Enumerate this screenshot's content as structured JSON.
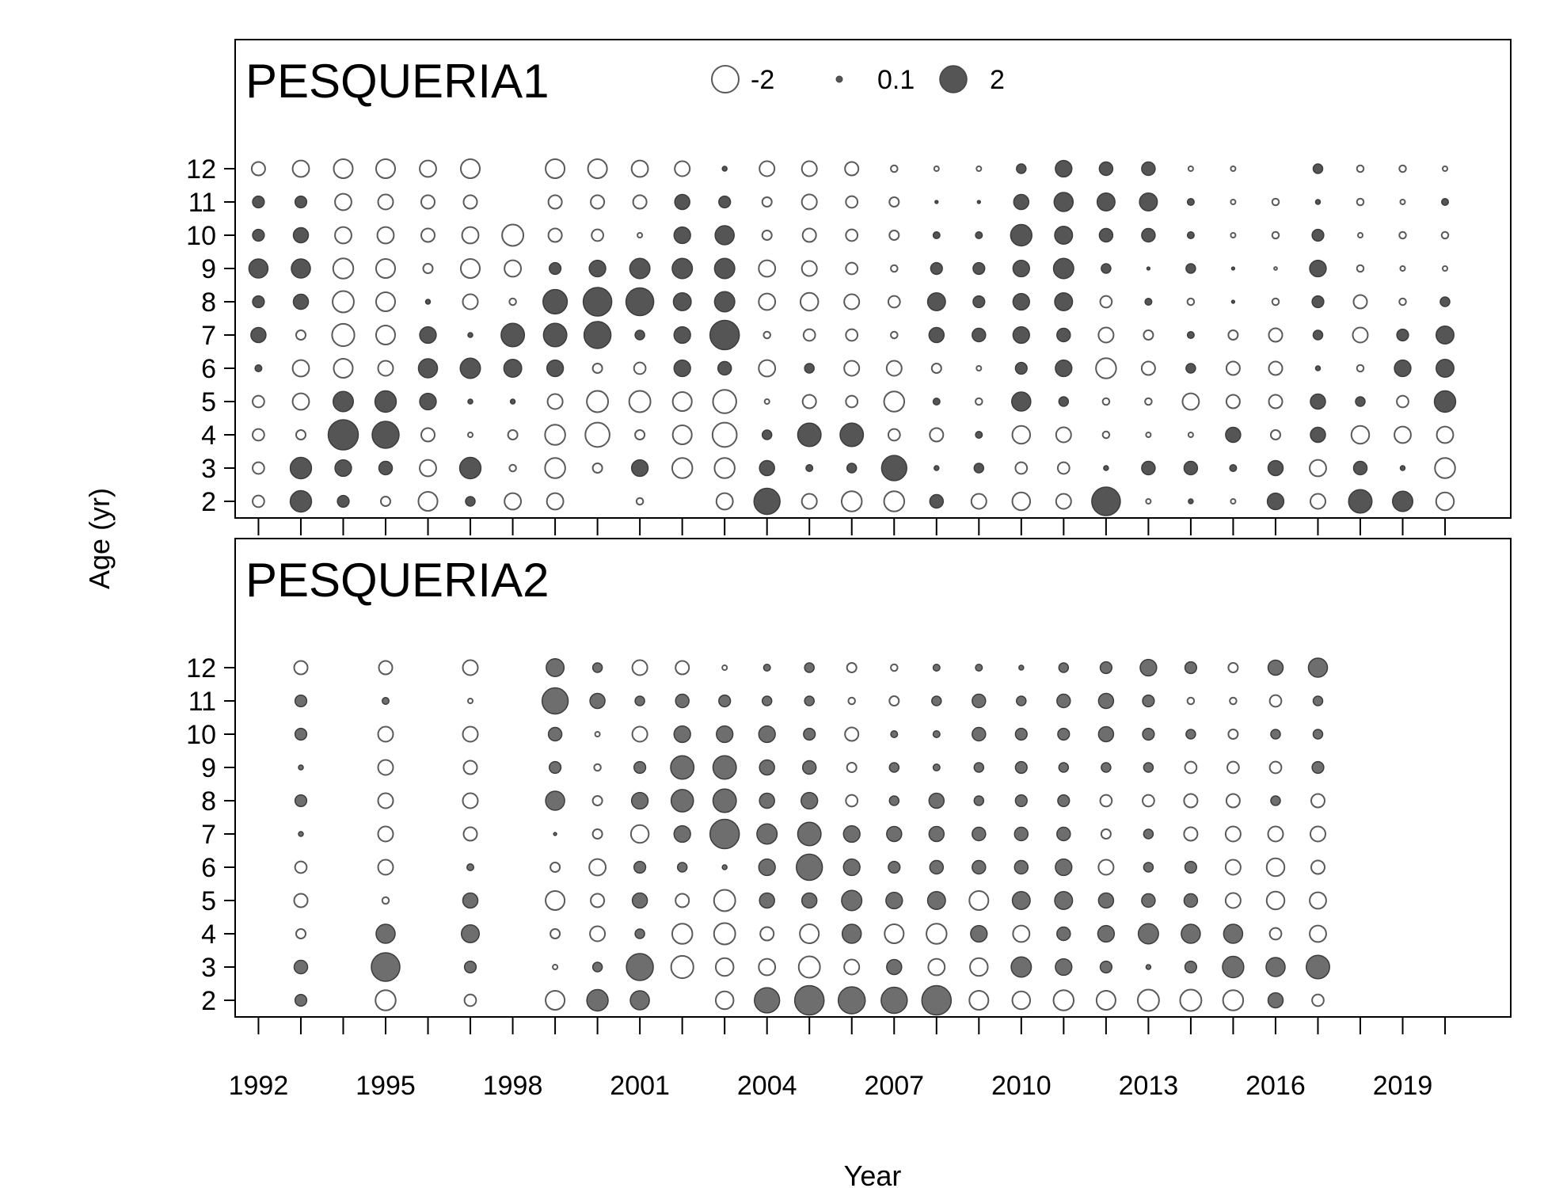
{
  "chart_data": {
    "type": "bubble",
    "xlabel": "Year",
    "ylabel": "Age (yr)",
    "x_ticks": [
      1992,
      1995,
      1998,
      2001,
      2004,
      2007,
      2010,
      2013,
      2016,
      2019
    ],
    "x_range": [
      1991.45,
      2021.55
    ],
    "y_ticks": [
      2,
      3,
      4,
      5,
      6,
      7,
      8,
      9,
      10,
      11,
      12
    ],
    "legend": {
      "placement": "top-center",
      "items": [
        {
          "label": "-2",
          "value": -2,
          "style": "open"
        },
        {
          "label": "0.1",
          "value": 0.1,
          "style": "filled"
        },
        {
          "label": "2",
          "value": 2,
          "style": "filled"
        }
      ]
    },
    "encoding": "bubble area proportional to |residual|; open circle = negative, filled dark circle = positive",
    "panels": [
      {
        "title": "PESQUERIA1",
        "years": [
          1992,
          1993,
          1994,
          1995,
          1996,
          1997,
          1998,
          1999,
          2000,
          2001,
          2002,
          2003,
          2004,
          2005,
          2006,
          2007,
          2008,
          2009,
          2010,
          2011,
          2012,
          2013,
          2014,
          2015,
          2016,
          2017,
          2018,
          2019,
          2020
        ],
        "ages": [
          2,
          3,
          4,
          5,
          6,
          7,
          8,
          9,
          10,
          11,
          12
        ],
        "residuals": [
          [
            -0.3,
            -0.3,
            -0.3,
            -0.3,
            0.1,
            0.5,
            0.3,
            0.8,
            0.3,
            0.3,
            -0.4
          ],
          [
            1.0,
            1.0,
            -0.2,
            -0.6,
            -0.6,
            -0.2,
            0.5,
            0.8,
            0.5,
            0.3,
            -0.6
          ],
          [
            0.3,
            0.6,
            2.0,
            0.9,
            -0.8,
            -1.1,
            -1.0,
            -0.9,
            -0.6,
            -0.6,
            -0.8
          ],
          [
            -0.2,
            0.4,
            1.6,
            1.0,
            -0.5,
            -0.8,
            -0.8,
            -0.8,
            -0.6,
            -0.5,
            -0.8
          ],
          [
            -0.8,
            -0.6,
            -0.4,
            0.6,
            0.8,
            0.6,
            0.05,
            -0.2,
            -0.4,
            -0.4,
            -0.6
          ],
          [
            0.2,
            1.0,
            -0.05,
            0.05,
            0.9,
            0.05,
            -0.5,
            -0.8,
            -0.6,
            -0.4,
            -0.8
          ],
          [
            -0.6,
            -0.1,
            -0.2,
            0.05,
            0.7,
            1.2,
            -0.1,
            -0.6,
            -1.0,
            null,
            null
          ],
          [
            -0.6,
            -0.9,
            -0.9,
            -0.5,
            0.6,
            1.2,
            1.3,
            0.3,
            -0.4,
            -0.4,
            -0.8
          ],
          [
            null,
            -0.2,
            -1.3,
            -1.0,
            -0.2,
            1.6,
            1.8,
            0.6,
            -0.3,
            -0.4,
            -0.8
          ],
          [
            -0.1,
            0.6,
            -0.2,
            -1.0,
            -0.3,
            0.2,
            1.7,
            0.9,
            -0.05,
            -0.4,
            -0.6
          ],
          [
            null,
            -0.9,
            -0.8,
            -0.8,
            0.6,
            0.6,
            0.7,
            0.9,
            0.6,
            0.5,
            -0.5
          ],
          [
            -0.6,
            -0.9,
            -1.3,
            -1.2,
            0.4,
            1.9,
            0.9,
            0.9,
            0.8,
            0.3,
            0.05
          ],
          [
            1.5,
            0.5,
            0.2,
            -0.05,
            -0.6,
            -0.1,
            -0.6,
            -0.6,
            -0.2,
            -0.2,
            -0.5
          ],
          [
            -0.5,
            0.1,
            1.2,
            -0.4,
            0.2,
            -0.3,
            -0.7,
            -0.5,
            -0.4,
            -0.5,
            -0.5
          ],
          [
            -0.9,
            0.2,
            1.2,
            -0.3,
            -0.5,
            -0.3,
            -0.5,
            -0.3,
            -0.3,
            -0.3,
            -0.4
          ],
          [
            -0.9,
            1.4,
            -0.3,
            -0.9,
            -0.5,
            -0.1,
            -0.3,
            -0.1,
            -0.2,
            -0.2,
            -0.1
          ],
          [
            0.4,
            0.05,
            -0.4,
            0.1,
            -0.2,
            0.5,
            0.7,
            0.3,
            0.1,
            0.02,
            -0.05
          ],
          [
            -0.5,
            0.2,
            0.1,
            -0.1,
            -0.05,
            0.4,
            0.3,
            0.3,
            0.1,
            0.02,
            -0.05
          ],
          [
            -0.7,
            -0.3,
            -0.7,
            0.8,
            0.3,
            0.6,
            0.6,
            0.6,
            1.0,
            0.5,
            0.2
          ],
          [
            -0.5,
            -0.3,
            -0.5,
            0.2,
            0.6,
            0.4,
            0.7,
            0.9,
            0.7,
            0.8,
            0.6
          ],
          [
            1.8,
            0.05,
            -0.1,
            -0.1,
            -0.9,
            -0.5,
            -0.3,
            0.2,
            0.4,
            0.7,
            0.4
          ],
          [
            -0.05,
            0.4,
            -0.05,
            -0.1,
            -0.4,
            -0.2,
            0.1,
            0.02,
            0.4,
            0.7,
            0.4
          ],
          [
            0.05,
            0.4,
            -0.05,
            -0.6,
            0.2,
            0.1,
            -0.1,
            0.2,
            0.1,
            0.1,
            -0.05
          ],
          [
            -0.05,
            0.1,
            0.5,
            -0.4,
            -0.4,
            -0.2,
            0.02,
            0.02,
            -0.05,
            -0.05,
            -0.05
          ],
          [
            0.6,
            0.5,
            -0.2,
            -0.4,
            -0.4,
            -0.4,
            -0.1,
            -0.02,
            -0.1,
            -0.1,
            null
          ],
          [
            -0.5,
            -0.6,
            0.5,
            0.5,
            0.05,
            0.2,
            0.3,
            0.6,
            0.3,
            0.05,
            0.2
          ],
          [
            1.2,
            0.4,
            -0.7,
            0.2,
            -0.1,
            -0.5,
            -0.4,
            -0.1,
            -0.05,
            -0.1,
            -0.1
          ],
          [
            0.9,
            0.05,
            -0.6,
            -0.3,
            0.6,
            0.3,
            -0.1,
            -0.05,
            -0.1,
            -0.05,
            -0.1
          ],
          [
            -0.7,
            -0.9,
            -0.6,
            1.0,
            0.7,
            0.7,
            0.2,
            -0.05,
            -0.1,
            0.1,
            -0.05
          ]
        ]
      },
      {
        "title": "PESQUERIA2",
        "years": [
          1993,
          1995,
          1997,
          1999,
          2000,
          2001,
          2002,
          2003,
          2004,
          2005,
          2006,
          2007,
          2008,
          2009,
          2010,
          2011,
          2012,
          2013,
          2014,
          2015,
          2016,
          2017
        ],
        "ages": [
          2,
          3,
          4,
          5,
          6,
          7,
          8,
          9,
          10,
          11,
          12
        ],
        "residuals": [
          [
            0.3,
            0.4,
            -0.2,
            -0.4,
            -0.3,
            0.05,
            0.3,
            0.05,
            0.3,
            0.3,
            -0.4
          ],
          [
            -0.9,
            1.8,
            0.8,
            -0.1,
            -0.5,
            -0.5,
            -0.5,
            -0.5,
            -0.5,
            0.1,
            -0.4
          ],
          [
            -0.3,
            0.3,
            0.7,
            0.5,
            0.1,
            -0.4,
            -0.5,
            -0.4,
            -0.5,
            -0.05,
            -0.5
          ],
          [
            -0.8,
            -0.05,
            -0.2,
            -0.8,
            -0.2,
            0.02,
            0.8,
            0.3,
            0.4,
            1.5,
            0.7
          ],
          [
            1.0,
            0.2,
            -0.5,
            -0.4,
            -0.6,
            -0.2,
            -0.2,
            -0.1,
            -0.05,
            0.5,
            0.2
          ],
          [
            0.8,
            1.6,
            0.2,
            0.5,
            0.3,
            -0.7,
            0.6,
            0.3,
            -0.5,
            0.2,
            -0.5
          ],
          [
            null,
            -1.1,
            -0.9,
            -0.4,
            0.2,
            0.6,
            1.1,
            1.2,
            0.6,
            0.4,
            -0.4
          ],
          [
            -0.7,
            -0.7,
            -1.0,
            -1.0,
            0.05,
            1.9,
            1.2,
            1.2,
            0.6,
            0.3,
            -0.05
          ],
          [
            1.4,
            -0.6,
            -0.4,
            0.5,
            0.6,
            0.9,
            0.5,
            0.5,
            0.6,
            0.2,
            0.1
          ],
          [
            1.9,
            -1.0,
            -0.8,
            0.5,
            1.5,
            1.2,
            0.6,
            0.4,
            0.3,
            0.2,
            0.2
          ],
          [
            1.6,
            -0.5,
            0.8,
            0.9,
            0.6,
            0.6,
            -0.3,
            -0.2,
            -0.4,
            -0.1,
            -0.2
          ],
          [
            1.5,
            0.5,
            -0.8,
            0.6,
            0.3,
            0.5,
            0.2,
            0.2,
            0.1,
            -0.2,
            -0.1
          ],
          [
            1.9,
            -0.6,
            -0.9,
            0.7,
            0.4,
            0.5,
            0.5,
            0.1,
            0.1,
            0.2,
            0.1
          ],
          [
            -0.8,
            -0.7,
            0.6,
            -0.8,
            0.4,
            0.4,
            0.2,
            0.2,
            0.4,
            0.4,
            0.1
          ],
          [
            -0.7,
            0.9,
            -0.6,
            0.7,
            0.4,
            0.4,
            0.3,
            0.3,
            0.3,
            0.2,
            0.05
          ],
          [
            -0.9,
            0.6,
            0.4,
            0.7,
            0.6,
            0.4,
            0.3,
            0.2,
            0.3,
            0.4,
            0.2
          ],
          [
            -0.8,
            0.3,
            0.6,
            0.5,
            -0.5,
            -0.2,
            -0.3,
            0.2,
            0.5,
            0.5,
            0.3
          ],
          [
            -1.0,
            0.05,
            0.9,
            0.4,
            0.2,
            0.2,
            -0.3,
            0.2,
            0.3,
            0.3,
            0.6
          ],
          [
            -1.0,
            0.3,
            0.8,
            0.4,
            0.3,
            -0.4,
            -0.4,
            -0.3,
            0.2,
            -0.1,
            0.3
          ],
          [
            -0.9,
            1.0,
            0.8,
            -0.5,
            -0.5,
            -0.5,
            -0.4,
            -0.3,
            -0.2,
            -0.1,
            -0.2
          ],
          [
            0.5,
            0.8,
            -0.3,
            -0.7,
            -0.7,
            -0.5,
            0.2,
            -0.3,
            0.2,
            -0.3,
            0.5
          ],
          [
            -0.3,
            1.2,
            -0.6,
            -0.6,
            -0.4,
            -0.5,
            -0.4,
            0.3,
            0.2,
            0.2,
            0.8
          ]
        ]
      }
    ]
  }
}
